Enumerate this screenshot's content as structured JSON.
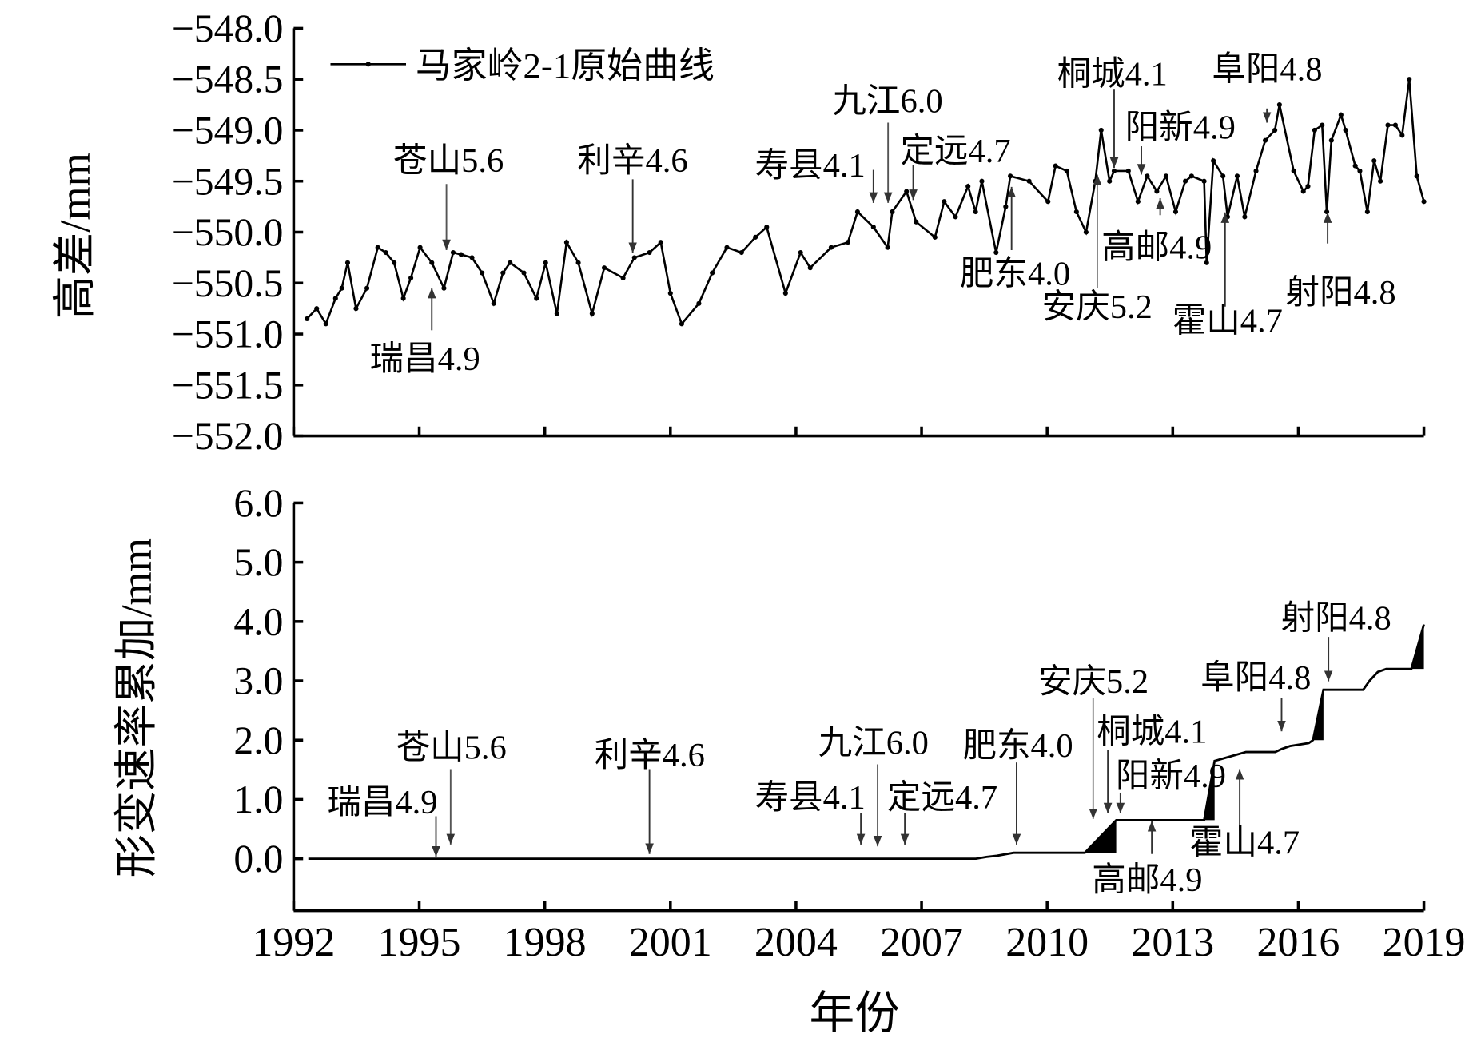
{
  "chart_data": [
    {
      "type": "line",
      "ylabel": "高差/mm",
      "ylim": [
        -552.0,
        -548.0
      ],
      "yticks": [
        "−548.0",
        "−548.5",
        "−549.0",
        "−549.5",
        "−550.0",
        "−550.5",
        "−551.0",
        "−551.5",
        "−552.0"
      ],
      "ytick_values": [
        -548.0,
        -548.5,
        -549.0,
        -549.5,
        -550.0,
        -550.5,
        -551.0,
        -551.5,
        -552.0
      ],
      "xlim": [
        1992,
        2019
      ],
      "legend": {
        "label": "马家岭2-1原始曲线",
        "placement": "top-left"
      },
      "series": [
        {
          "name": "马家岭2-1原始曲线",
          "x": [
            1992.32,
            1992.55,
            1992.77,
            1993.0,
            1993.15,
            1993.29,
            1993.49,
            1993.75,
            1994.01,
            1994.2,
            1994.4,
            1994.62,
            1994.8,
            1995.02,
            1995.3,
            1995.59,
            1995.81,
            1996.0,
            1996.26,
            1996.5,
            1996.78,
            1997.0,
            1997.17,
            1997.5,
            1997.8,
            1998.02,
            1998.29,
            1998.52,
            1998.8,
            1999.13,
            1999.42,
            1999.87,
            2000.14,
            2000.5,
            2000.77,
            2001.0,
            2001.27,
            2001.68,
            2002.0,
            2002.35,
            2002.7,
            2003.03,
            2003.3,
            2003.75,
            2004.11,
            2004.34,
            2004.84,
            2005.24,
            2005.47,
            2005.85,
            2006.19,
            2006.3,
            2006.64,
            2006.87,
            2007.32,
            2007.54,
            2007.81,
            2008.11,
            2008.29,
            2008.44,
            2008.78,
            2009.01,
            2009.12,
            2009.57,
            2010.02,
            2010.2,
            2010.47,
            2010.7,
            2010.93,
            2011.15,
            2011.29,
            2011.49,
            2011.6,
            2011.94,
            2012.17,
            2012.39,
            2012.62,
            2012.84,
            2013.07,
            2013.3,
            2013.45,
            2013.75,
            2013.81,
            2013.97,
            2014.2,
            2014.31,
            2014.54,
            2014.72,
            2014.99,
            2015.21,
            2015.44,
            2015.55,
            2015.89,
            2016.12,
            2016.23,
            2016.39,
            2016.57,
            2016.68,
            2016.79,
            2017.02,
            2017.13,
            2017.36,
            2017.47,
            2017.65,
            2017.81,
            2017.96,
            2018.14,
            2018.32,
            2018.48,
            2018.65,
            2018.83,
            2019.0
          ],
          "y": [
            -550.85,
            -550.75,
            -550.9,
            -550.65,
            -550.55,
            -550.3,
            -550.75,
            -550.55,
            -550.15,
            -550.2,
            -550.3,
            -550.65,
            -550.45,
            -550.15,
            -550.3,
            -550.55,
            -550.2,
            -550.22,
            -550.25,
            -550.4,
            -550.7,
            -550.4,
            -550.3,
            -550.4,
            -550.65,
            -550.3,
            -550.8,
            -550.1,
            -550.3,
            -550.8,
            -550.35,
            -550.45,
            -550.25,
            -550.2,
            -550.1,
            -550.6,
            -550.9,
            -550.7,
            -550.4,
            -550.15,
            -550.2,
            -550.05,
            -549.95,
            -550.6,
            -550.2,
            -550.35,
            -550.15,
            -550.1,
            -549.8,
            -549.95,
            -550.15,
            -549.8,
            -549.6,
            -549.9,
            -550.05,
            -549.7,
            -549.85,
            -549.55,
            -549.8,
            -549.5,
            -550.2,
            -549.75,
            -549.45,
            -549.5,
            -549.7,
            -549.35,
            -549.4,
            -549.8,
            -550.0,
            -549.5,
            -549.0,
            -549.5,
            -549.4,
            -549.4,
            -549.7,
            -549.45,
            -549.6,
            -549.45,
            -549.8,
            -549.5,
            -549.45,
            -549.5,
            -550.3,
            -549.3,
            -549.45,
            -549.85,
            -549.45,
            -549.85,
            -549.4,
            -549.1,
            -549.0,
            -548.75,
            -549.4,
            -549.6,
            -549.55,
            -549.0,
            -548.95,
            -549.8,
            -549.1,
            -548.85,
            -549.0,
            -549.35,
            -549.4,
            -549.8,
            -549.3,
            -549.5,
            -548.95,
            -548.95,
            -549.05,
            -548.5,
            -549.45,
            -549.7
          ]
        }
      ],
      "annotations": [
        {
          "label": "苍山5.6",
          "year": 1995.65,
          "direction": "down"
        },
        {
          "label": "瑞昌4.9",
          "year": 1995.3,
          "direction": "up"
        },
        {
          "label": "利辛4.6",
          "year": 2000.1,
          "direction": "down"
        },
        {
          "label": "寿县4.1",
          "year": 2005.85,
          "direction": "down"
        },
        {
          "label": "九江6.0",
          "year": 2006.2,
          "direction": "down"
        },
        {
          "label": "定远4.7",
          "year": 2006.8,
          "direction": "down"
        },
        {
          "label": "肥东4.0",
          "year": 2009.15,
          "direction": "up"
        },
        {
          "label": "安庆5.2",
          "year": 2011.2,
          "direction": "up"
        },
        {
          "label": "高邮4.9",
          "year": 2012.7,
          "direction": "up"
        },
        {
          "label": "桐城4.1",
          "year": 2011.6,
          "direction": "down"
        },
        {
          "label": "阳新4.9",
          "year": 2012.25,
          "direction": "down"
        },
        {
          "label": "阜阳4.8",
          "year": 2015.25,
          "direction": "down"
        },
        {
          "label": "霍山4.7",
          "year": 2014.25,
          "direction": "up"
        },
        {
          "label": "射阳4.8",
          "year": 2016.7,
          "direction": "up"
        }
      ]
    },
    {
      "type": "area",
      "ylabel": "形变速率累加/mm",
      "xlabel": "年份",
      "ylim": [
        -0.9,
        6.0
      ],
      "yticks": [
        "6.0",
        "5.0",
        "4.0",
        "3.0",
        "2.0",
        "1.0",
        "0.0"
      ],
      "ytick_values": [
        6,
        5,
        4,
        3,
        2,
        1,
        0
      ],
      "xlim": [
        1992,
        2019
      ],
      "xticks": [
        "1992",
        "1995",
        "1998",
        "2001",
        "2004",
        "2007",
        "2010",
        "2013",
        "2016",
        "2019"
      ],
      "xtick_values": [
        1992,
        1995,
        1998,
        2001,
        2004,
        2007,
        2010,
        2013,
        2016,
        2019
      ],
      "series": [
        {
          "name": "形变速率累加",
          "x": [
            1992.35,
            2008.3,
            2008.55,
            2008.8,
            2009.2,
            2010.9,
            2011.65,
            2013.75,
            2014.0,
            2014.5,
            2014.75,
            2015.45,
            2015.6,
            2015.8,
            2016.25,
            2016.35,
            2016.6,
            2017.55,
            2017.7,
            2017.9,
            2018.1,
            2018.7,
            2019.0
          ],
          "y": [
            0,
            0,
            0.03,
            0.05,
            0.1,
            0.1,
            0.65,
            0.65,
            1.65,
            1.75,
            1.8,
            1.8,
            1.85,
            1.9,
            1.95,
            2.0,
            2.85,
            2.85,
            3.0,
            3.15,
            3.2,
            3.2,
            3.95
          ]
        }
      ],
      "filled_ramps": [
        {
          "from": [
            2010.9,
            0.1
          ],
          "to": [
            2011.65,
            0.65
          ]
        },
        {
          "from": [
            2013.75,
            0.65
          ],
          "to": [
            2014.0,
            1.65
          ]
        },
        {
          "from": [
            2016.35,
            2.0
          ],
          "to": [
            2016.6,
            2.85
          ]
        },
        {
          "from": [
            2018.7,
            3.2
          ],
          "to": [
            2019.0,
            3.95
          ]
        }
      ],
      "annotations": [
        {
          "label": "瑞昌4.9",
          "year": 1995.4,
          "direction": "down"
        },
        {
          "label": "苍山5.6",
          "year": 1995.75,
          "direction": "down"
        },
        {
          "label": "利辛4.6",
          "year": 2000.5,
          "direction": "down"
        },
        {
          "label": "寿县4.1",
          "year": 2005.55,
          "direction": "down"
        },
        {
          "label": "九江6.0",
          "year": 2005.95,
          "direction": "down"
        },
        {
          "label": "定远4.7",
          "year": 2006.6,
          "direction": "down"
        },
        {
          "label": "肥东4.0",
          "year": 2009.27,
          "direction": "down"
        },
        {
          "label": "安庆5.2",
          "year": 2011.1,
          "direction": "down"
        },
        {
          "label": "桐城4.1",
          "year": 2011.45,
          "direction": "down"
        },
        {
          "label": "阳新4.9",
          "year": 2011.75,
          "direction": "down"
        },
        {
          "label": "高邮4.9",
          "year": 2012.5,
          "direction": "up"
        },
        {
          "label": "霍山4.7",
          "year": 2014.6,
          "direction": "up"
        },
        {
          "label": "阜阳4.8",
          "year": 2015.6,
          "direction": "down"
        },
        {
          "label": "射阳4.8",
          "year": 2016.72,
          "direction": "down"
        }
      ]
    }
  ]
}
